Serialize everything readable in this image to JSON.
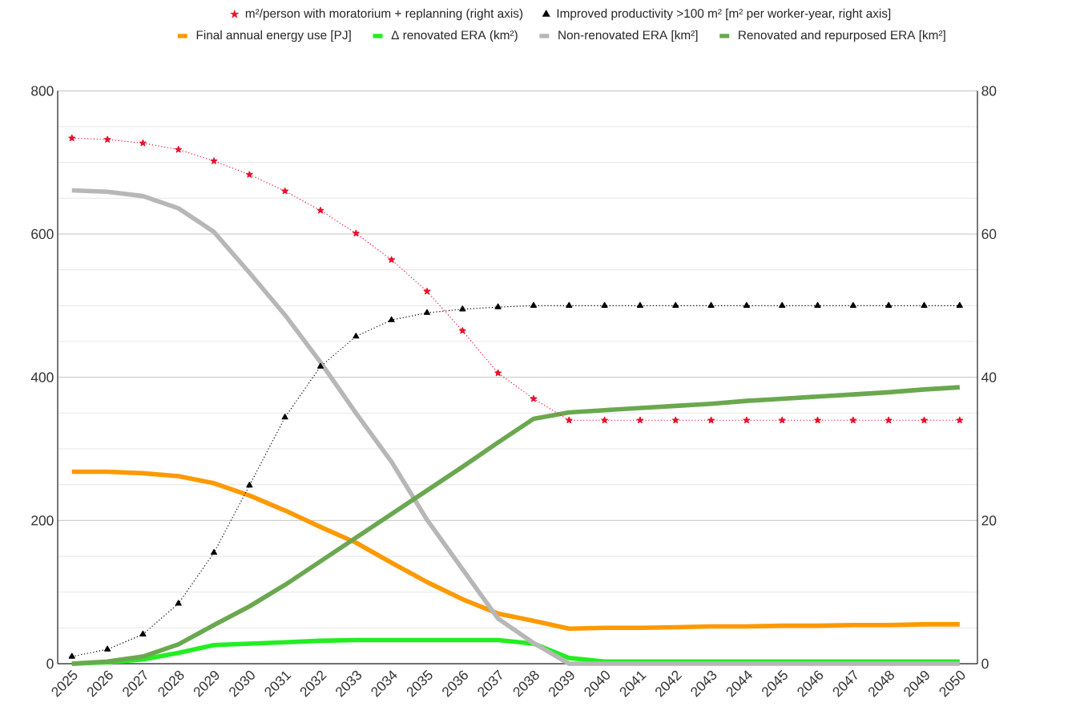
{
  "chart_data": {
    "type": "line",
    "categories": [
      "2025",
      "2026",
      "2027",
      "2028",
      "2029",
      "2030",
      "2031",
      "2032",
      "2033",
      "2034",
      "2035",
      "2036",
      "2037",
      "2038",
      "2039",
      "2040",
      "2041",
      "2042",
      "2043",
      "2044",
      "2045",
      "2046",
      "2047",
      "2048",
      "2049",
      "2050"
    ],
    "ylim": [
      0,
      800
    ],
    "yticks": [
      0,
      200,
      400,
      600,
      800
    ],
    "y2lim": [
      0,
      80
    ],
    "y2ticks": [
      0,
      20,
      40,
      60,
      80
    ],
    "grid": "y",
    "legend": "top",
    "series": [
      {
        "name": "m²/person with moratorium + replanning (right axis)",
        "color": "#e8112d",
        "axis": "y2",
        "marker": "star",
        "line_style": "dotted",
        "values": [
          73.4,
          73.2,
          72.7,
          71.8,
          70.2,
          68.3,
          66.0,
          63.3,
          60.1,
          56.4,
          52.0,
          46.5,
          40.6,
          37.0,
          34.0,
          34.0,
          34.0,
          34.0,
          34.0,
          34.0,
          34.0,
          34.0,
          34.0,
          34.0,
          34.0,
          34.0
        ]
      },
      {
        "name": "Improved productivity >100 m² [m² per worker-year, right axis]",
        "color": "#000000",
        "axis": "y2",
        "marker": "triangle",
        "line_style": "dotted",
        "values": [
          1.0,
          2.0,
          4.1,
          8.4,
          15.5,
          24.9,
          34.4,
          41.5,
          45.7,
          48.0,
          49.0,
          49.5,
          49.8,
          50,
          50,
          50,
          50,
          50,
          50,
          50,
          50,
          50,
          50,
          50,
          50,
          50
        ]
      },
      {
        "name": "Final annual energy use [PJ]",
        "color": "#ff9900",
        "values": [
          268,
          268,
          266,
          262,
          252,
          235,
          214,
          191,
          169,
          141,
          114,
          90,
          70,
          60,
          49,
          50,
          50,
          51,
          52,
          52,
          53,
          53,
          54,
          54,
          55,
          55
        ]
      },
      {
        "name": "Δ renovated ERA (km²)",
        "color": "#22ee22",
        "values": [
          0,
          2,
          6,
          15,
          26,
          28,
          30,
          32,
          33,
          33,
          33,
          33,
          33,
          28,
          8,
          3,
          3,
          3,
          3,
          3,
          3,
          3,
          3,
          3,
          3,
          3
        ]
      },
      {
        "name": "Non-renovated ERA [km²]",
        "color": "#b7b7b7",
        "values": [
          661,
          659,
          653,
          636,
          603,
          546,
          487,
          421,
          350,
          282,
          201,
          132,
          63,
          29,
          0,
          0,
          0,
          0,
          0,
          0,
          0,
          0,
          0,
          0,
          0,
          0
        ]
      },
      {
        "name": "Renovated and repurposed ERA [km²]",
        "color": "#6aa84f",
        "values": [
          0,
          3,
          10,
          27,
          54,
          80,
          110,
          143,
          176,
          209,
          242,
          275,
          309,
          342,
          351,
          354,
          357,
          360,
          363,
          367,
          370,
          373,
          376,
          379,
          383,
          386
        ]
      }
    ]
  }
}
